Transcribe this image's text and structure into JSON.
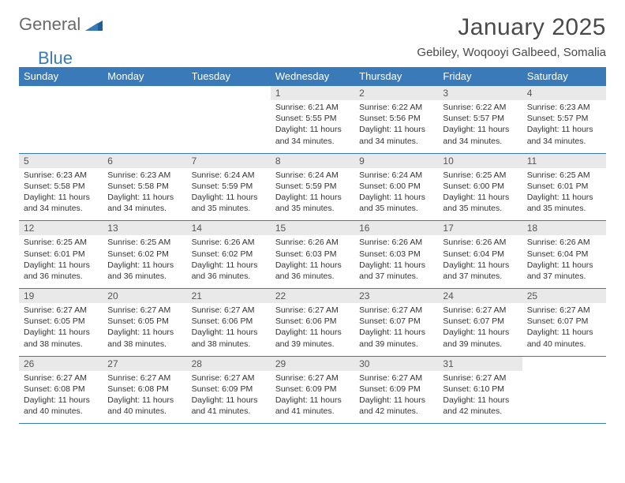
{
  "logo": {
    "text1": "General",
    "text2": "Blue"
  },
  "title": "January 2025",
  "location": "Gebiley, Woqooyi Galbeed, Somalia",
  "colors": {
    "header_bg": "#3a7ab8",
    "header_text": "#ffffff",
    "daynum_bg": "#e9e9e9",
    "border": "#3a7ab8",
    "body_text": "#333333",
    "logo_gray": "#6a6a6a",
    "logo_blue": "#3a7ab8",
    "background": "#ffffff"
  },
  "weekdays": [
    "Sunday",
    "Monday",
    "Tuesday",
    "Wednesday",
    "Thursday",
    "Friday",
    "Saturday"
  ],
  "weeks": [
    [
      {
        "n": "",
        "sr": "",
        "ss": "",
        "dl": ""
      },
      {
        "n": "",
        "sr": "",
        "ss": "",
        "dl": ""
      },
      {
        "n": "",
        "sr": "",
        "ss": "",
        "dl": ""
      },
      {
        "n": "1",
        "sr": "6:21 AM",
        "ss": "5:55 PM",
        "dl": "11 hours and 34 minutes."
      },
      {
        "n": "2",
        "sr": "6:22 AM",
        "ss": "5:56 PM",
        "dl": "11 hours and 34 minutes."
      },
      {
        "n": "3",
        "sr": "6:22 AM",
        "ss": "5:57 PM",
        "dl": "11 hours and 34 minutes."
      },
      {
        "n": "4",
        "sr": "6:23 AM",
        "ss": "5:57 PM",
        "dl": "11 hours and 34 minutes."
      }
    ],
    [
      {
        "n": "5",
        "sr": "6:23 AM",
        "ss": "5:58 PM",
        "dl": "11 hours and 34 minutes."
      },
      {
        "n": "6",
        "sr": "6:23 AM",
        "ss": "5:58 PM",
        "dl": "11 hours and 34 minutes."
      },
      {
        "n": "7",
        "sr": "6:24 AM",
        "ss": "5:59 PM",
        "dl": "11 hours and 35 minutes."
      },
      {
        "n": "8",
        "sr": "6:24 AM",
        "ss": "5:59 PM",
        "dl": "11 hours and 35 minutes."
      },
      {
        "n": "9",
        "sr": "6:24 AM",
        "ss": "6:00 PM",
        "dl": "11 hours and 35 minutes."
      },
      {
        "n": "10",
        "sr": "6:25 AM",
        "ss": "6:00 PM",
        "dl": "11 hours and 35 minutes."
      },
      {
        "n": "11",
        "sr": "6:25 AM",
        "ss": "6:01 PM",
        "dl": "11 hours and 35 minutes."
      }
    ],
    [
      {
        "n": "12",
        "sr": "6:25 AM",
        "ss": "6:01 PM",
        "dl": "11 hours and 36 minutes."
      },
      {
        "n": "13",
        "sr": "6:25 AM",
        "ss": "6:02 PM",
        "dl": "11 hours and 36 minutes."
      },
      {
        "n": "14",
        "sr": "6:26 AM",
        "ss": "6:02 PM",
        "dl": "11 hours and 36 minutes."
      },
      {
        "n": "15",
        "sr": "6:26 AM",
        "ss": "6:03 PM",
        "dl": "11 hours and 36 minutes."
      },
      {
        "n": "16",
        "sr": "6:26 AM",
        "ss": "6:03 PM",
        "dl": "11 hours and 37 minutes."
      },
      {
        "n": "17",
        "sr": "6:26 AM",
        "ss": "6:04 PM",
        "dl": "11 hours and 37 minutes."
      },
      {
        "n": "18",
        "sr": "6:26 AM",
        "ss": "6:04 PM",
        "dl": "11 hours and 37 minutes."
      }
    ],
    [
      {
        "n": "19",
        "sr": "6:27 AM",
        "ss": "6:05 PM",
        "dl": "11 hours and 38 minutes."
      },
      {
        "n": "20",
        "sr": "6:27 AM",
        "ss": "6:05 PM",
        "dl": "11 hours and 38 minutes."
      },
      {
        "n": "21",
        "sr": "6:27 AM",
        "ss": "6:06 PM",
        "dl": "11 hours and 38 minutes."
      },
      {
        "n": "22",
        "sr": "6:27 AM",
        "ss": "6:06 PM",
        "dl": "11 hours and 39 minutes."
      },
      {
        "n": "23",
        "sr": "6:27 AM",
        "ss": "6:07 PM",
        "dl": "11 hours and 39 minutes."
      },
      {
        "n": "24",
        "sr": "6:27 AM",
        "ss": "6:07 PM",
        "dl": "11 hours and 39 minutes."
      },
      {
        "n": "25",
        "sr": "6:27 AM",
        "ss": "6:07 PM",
        "dl": "11 hours and 40 minutes."
      }
    ],
    [
      {
        "n": "26",
        "sr": "6:27 AM",
        "ss": "6:08 PM",
        "dl": "11 hours and 40 minutes."
      },
      {
        "n": "27",
        "sr": "6:27 AM",
        "ss": "6:08 PM",
        "dl": "11 hours and 40 minutes."
      },
      {
        "n": "28",
        "sr": "6:27 AM",
        "ss": "6:09 PM",
        "dl": "11 hours and 41 minutes."
      },
      {
        "n": "29",
        "sr": "6:27 AM",
        "ss": "6:09 PM",
        "dl": "11 hours and 41 minutes."
      },
      {
        "n": "30",
        "sr": "6:27 AM",
        "ss": "6:09 PM",
        "dl": "11 hours and 42 minutes."
      },
      {
        "n": "31",
        "sr": "6:27 AM",
        "ss": "6:10 PM",
        "dl": "11 hours and 42 minutes."
      },
      {
        "n": "",
        "sr": "",
        "ss": "",
        "dl": ""
      }
    ]
  ],
  "labels": {
    "sunrise": "Sunrise:",
    "sunset": "Sunset:",
    "daylight": "Daylight:"
  }
}
